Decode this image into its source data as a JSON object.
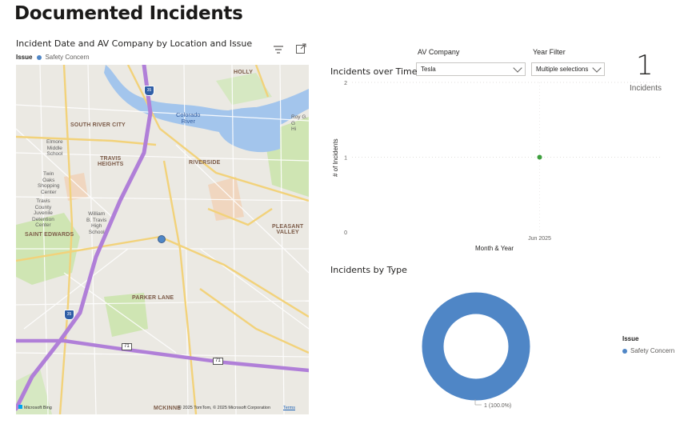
{
  "page": {
    "title": "Documented Incidents"
  },
  "map_visual": {
    "title": "Incident Date and AV Company by Location and Issue",
    "legend_title": "Issue",
    "legend_items": [
      {
        "label": "Safety Concern",
        "color": "#4f86c6"
      }
    ],
    "icons": [
      "filter-icon",
      "focus-mode-icon"
    ],
    "labels": {
      "holly": "HOLLY",
      "south_river_city": "SOUTH RIVER CITY",
      "travis_heights": "TRAVIS\nHEIGHTS",
      "riverside": "RIVERSIDE",
      "saint_edwards": "SAINT EDWARDS",
      "pleasant_valley": "PLEASANT\nVALLEY",
      "parker_lane": "PARKER LANE",
      "mckinney": "MCKINNE",
      "colorado_river": "Colorado\nRiver",
      "roy_g": "Roy G.\nG\nHi",
      "elmore": "Elmore\nMiddle\nSchool",
      "twin_oaks": "Twin\nOaks\nShopping\nCenter",
      "travis_county": "Travis\nCounty\nJuvenile\nDetention\nCenter",
      "william_b": "William\nB. Travis\nHigh\nSchool",
      "shield_35_top": "35",
      "shield_35_bottom": "35",
      "shield_71_left": "71",
      "shield_71_right": "71",
      "footer_brand": "Microsoft Bing",
      "footer_copyright": "© 2025 TomTom, © 2025 Microsoft Corporation",
      "footer_terms": "Terms"
    },
    "points": [
      {
        "issue": "Safety Concern",
        "color": "#4f86c6"
      }
    ]
  },
  "slicers": {
    "av_company": {
      "label": "AV Company",
      "value": "Tesla"
    },
    "year_filter": {
      "label": "Year Filter",
      "value": "Multiple selections"
    }
  },
  "card": {
    "value": "1",
    "label": "Incidents"
  },
  "line_chart": {
    "title": "Incidents over Time",
    "chart_data": {
      "type": "scatter",
      "x": [
        "Jun 2025"
      ],
      "y": [
        1
      ],
      "xlabel": "Month & Year",
      "ylabel": "# of Incidents",
      "ylim": [
        0,
        2
      ],
      "yticks": [
        "0",
        "1",
        "2"
      ],
      "xticks": [
        "Jun 2025"
      ],
      "color": "#3e9f3e",
      "grid": true
    }
  },
  "donut_chart": {
    "title": "Incidents by Type",
    "chart_data": {
      "type": "pie",
      "categories": [
        "Safety Concern"
      ],
      "values": [
        1
      ],
      "data_labels": [
        "1 (100.0%)"
      ],
      "legend_title": "Issue",
      "colors": [
        "#4f86c6"
      ],
      "legend_position": "right"
    }
  }
}
